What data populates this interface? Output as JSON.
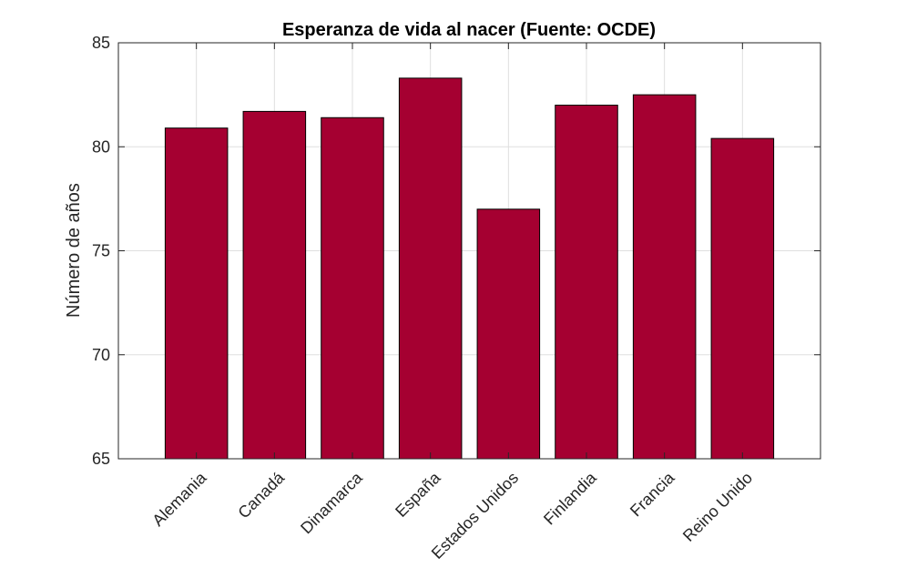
{
  "chart_data": {
    "type": "bar",
    "title": "Esperanza de vida al nacer (Fuente: OCDE)",
    "xlabel": "",
    "ylabel": "Número de años",
    "categories": [
      "Alemania",
      "Canadá",
      "Dinamarca",
      "España",
      "Estados Unidos",
      "Finlandia",
      "Francia",
      "Reino Unido"
    ],
    "values": [
      80.9,
      81.7,
      81.4,
      83.3,
      77.0,
      82.0,
      82.5,
      80.4
    ],
    "ylim": [
      65,
      85
    ],
    "yticks": [
      65,
      70,
      75,
      80,
      85
    ],
    "grid": true,
    "legend": "none",
    "bar_color": "#A50031"
  }
}
